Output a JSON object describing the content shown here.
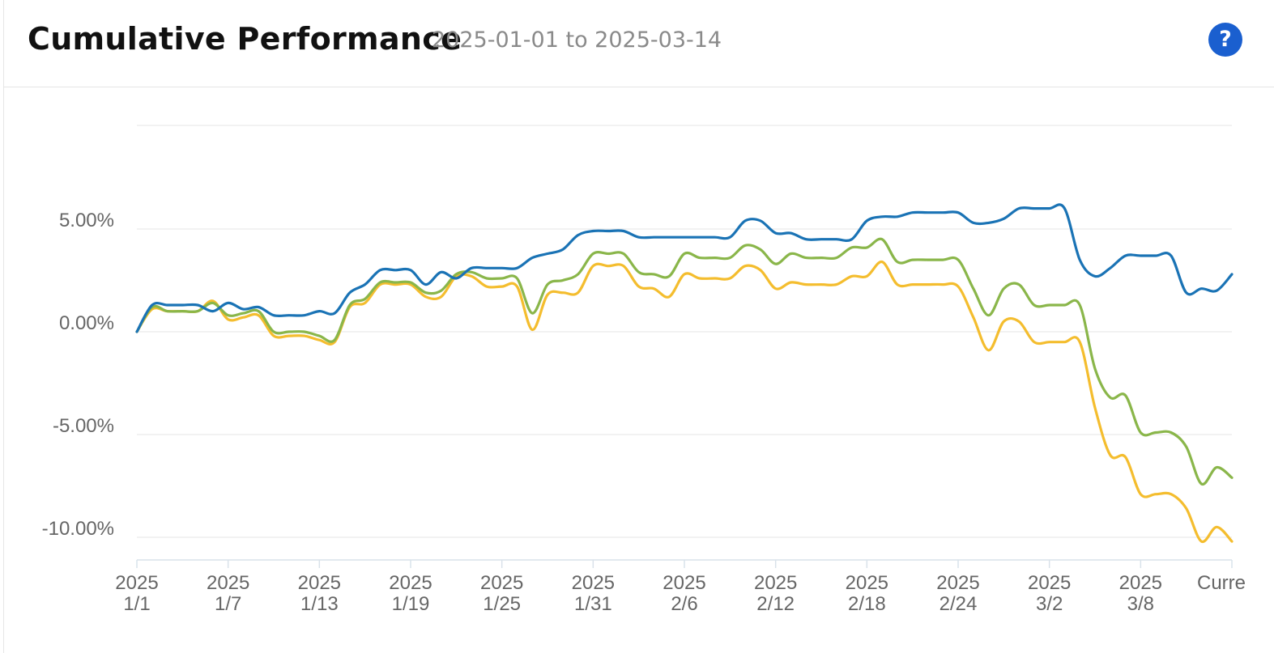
{
  "header": {
    "title": "Cumulative Performance",
    "date_range": "2025-01-01 to 2025-03-14",
    "help_label": "?"
  },
  "colors": {
    "series_1": "#1a73b5",
    "series_2": "#8ab64a",
    "series_3": "#f4bd2e",
    "grid": "#e6e6e6",
    "axis": "#d9e2ea"
  },
  "chart_data": {
    "type": "line",
    "title": "",
    "xlabel": "",
    "ylabel": "",
    "ylim": [
      -10.5,
      10
    ],
    "yticks": [
      5,
      0,
      -5,
      -10
    ],
    "ytick_labels": [
      "5.00%",
      "0.00%",
      "-5.00%",
      "-10.00%"
    ],
    "grid": true,
    "legend": "none",
    "xticks": [
      {
        "index": 0,
        "top": "2025",
        "bottom": "1/1"
      },
      {
        "index": 6,
        "top": "2025",
        "bottom": "1/7"
      },
      {
        "index": 12,
        "top": "2025",
        "bottom": "1/13"
      },
      {
        "index": 18,
        "top": "2025",
        "bottom": "1/19"
      },
      {
        "index": 24,
        "top": "2025",
        "bottom": "1/25"
      },
      {
        "index": 30,
        "top": "2025",
        "bottom": "1/31"
      },
      {
        "index": 36,
        "top": "2025",
        "bottom": "2/6"
      },
      {
        "index": 42,
        "top": "2025",
        "bottom": "2/12"
      },
      {
        "index": 48,
        "top": "2025",
        "bottom": "2/18"
      },
      {
        "index": 54,
        "top": "2025",
        "bottom": "2/24"
      },
      {
        "index": 60,
        "top": "2025",
        "bottom": "3/2"
      },
      {
        "index": 66,
        "top": "2025",
        "bottom": "3/8"
      },
      {
        "index": 72,
        "top": "",
        "bottom": "Curre"
      }
    ],
    "x_count": 73,
    "series": [
      {
        "values": [
          0.0,
          1.3,
          1.3,
          1.3,
          1.3,
          1.0,
          1.4,
          1.1,
          1.2,
          0.8,
          0.8,
          0.8,
          1.0,
          0.9,
          1.9,
          2.3,
          3.0,
          3.0,
          3.0,
          2.3,
          2.9,
          2.6,
          3.1,
          3.1,
          3.1,
          3.1,
          3.6,
          3.8,
          4.0,
          4.7,
          4.9,
          4.9,
          4.9,
          4.6,
          4.6,
          4.6,
          4.6,
          4.6,
          4.6,
          4.6,
          5.4,
          5.4,
          4.8,
          4.8,
          4.5,
          4.5,
          4.5,
          4.5,
          5.4,
          5.6,
          5.6,
          5.8,
          5.8,
          5.8,
          5.8,
          5.3,
          5.3,
          5.5,
          6.0,
          6.0,
          6.0,
          6.0,
          3.5,
          2.7,
          3.1,
          3.7,
          3.7,
          3.7,
          3.7,
          1.9,
          2.1,
          2.0,
          2.8
        ]
      },
      {
        "values": [
          0.0,
          1.2,
          1.0,
          1.0,
          1.0,
          1.4,
          0.8,
          0.9,
          1.0,
          0.0,
          0.0,
          0.0,
          -0.2,
          -0.4,
          1.3,
          1.6,
          2.4,
          2.4,
          2.4,
          1.9,
          2.0,
          2.8,
          2.9,
          2.6,
          2.6,
          2.6,
          0.9,
          2.3,
          2.5,
          2.8,
          3.8,
          3.8,
          3.8,
          2.9,
          2.8,
          2.7,
          3.8,
          3.6,
          3.6,
          3.6,
          4.2,
          4.0,
          3.3,
          3.8,
          3.6,
          3.6,
          3.6,
          4.1,
          4.1,
          4.5,
          3.4,
          3.5,
          3.5,
          3.5,
          3.5,
          2.1,
          0.8,
          2.1,
          2.3,
          1.3,
          1.3,
          1.3,
          1.3,
          -1.8,
          -3.2,
          -3.1,
          -4.9,
          -4.9,
          -4.9,
          -5.6,
          -7.4,
          -6.6,
          -7.1
        ]
      },
      {
        "values": [
          0.0,
          1.1,
          1.0,
          1.0,
          1.0,
          1.5,
          0.6,
          0.7,
          0.8,
          -0.2,
          -0.2,
          -0.2,
          -0.4,
          -0.5,
          1.2,
          1.4,
          2.3,
          2.3,
          2.3,
          1.7,
          1.7,
          2.7,
          2.7,
          2.2,
          2.2,
          2.2,
          0.1,
          1.8,
          1.9,
          1.9,
          3.2,
          3.2,
          3.2,
          2.2,
          2.1,
          1.7,
          2.8,
          2.6,
          2.6,
          2.6,
          3.2,
          3.0,
          2.1,
          2.4,
          2.3,
          2.3,
          2.3,
          2.7,
          2.7,
          3.4,
          2.3,
          2.3,
          2.3,
          2.3,
          2.2,
          0.7,
          -0.9,
          0.5,
          0.5,
          -0.5,
          -0.5,
          -0.5,
          -0.5,
          -3.7,
          -6.0,
          -6.1,
          -7.9,
          -7.9,
          -7.9,
          -8.6,
          -10.2,
          -9.5,
          -10.2
        ]
      }
    ]
  }
}
